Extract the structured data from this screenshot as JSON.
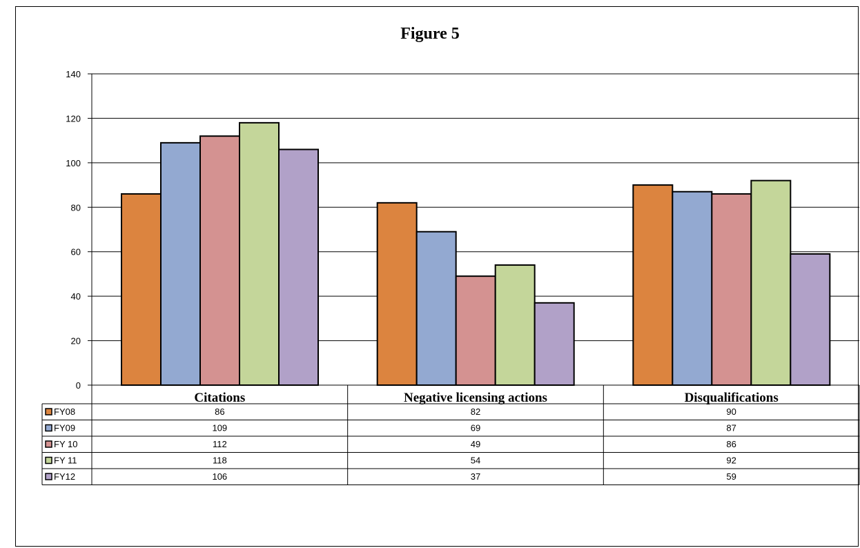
{
  "chart_data": {
    "type": "bar",
    "title": "Figure 5",
    "categories": [
      "Citations",
      "Negative licensing actions",
      "Disqualifications"
    ],
    "series": [
      {
        "name": "FY08",
        "values": [
          86,
          82,
          90
        ],
        "color": "#dc843f"
      },
      {
        "name": "FY09",
        "values": [
          109,
          69,
          87
        ],
        "color": "#93a9d1"
      },
      {
        "name": "FY 10",
        "values": [
          112,
          49,
          86
        ],
        "color": "#d49291"
      },
      {
        "name": "FY 11",
        "values": [
          118,
          54,
          92
        ],
        "color": "#c4d69a"
      },
      {
        "name": "FY12",
        "values": [
          106,
          37,
          59
        ],
        "color": "#b1a1c8"
      }
    ],
    "ylim": [
      0,
      140
    ],
    "yticks": [
      0,
      20,
      40,
      60,
      80,
      100,
      120,
      140
    ],
    "xlabel": "",
    "ylabel": "",
    "grid": true,
    "legend": "data-table"
  }
}
